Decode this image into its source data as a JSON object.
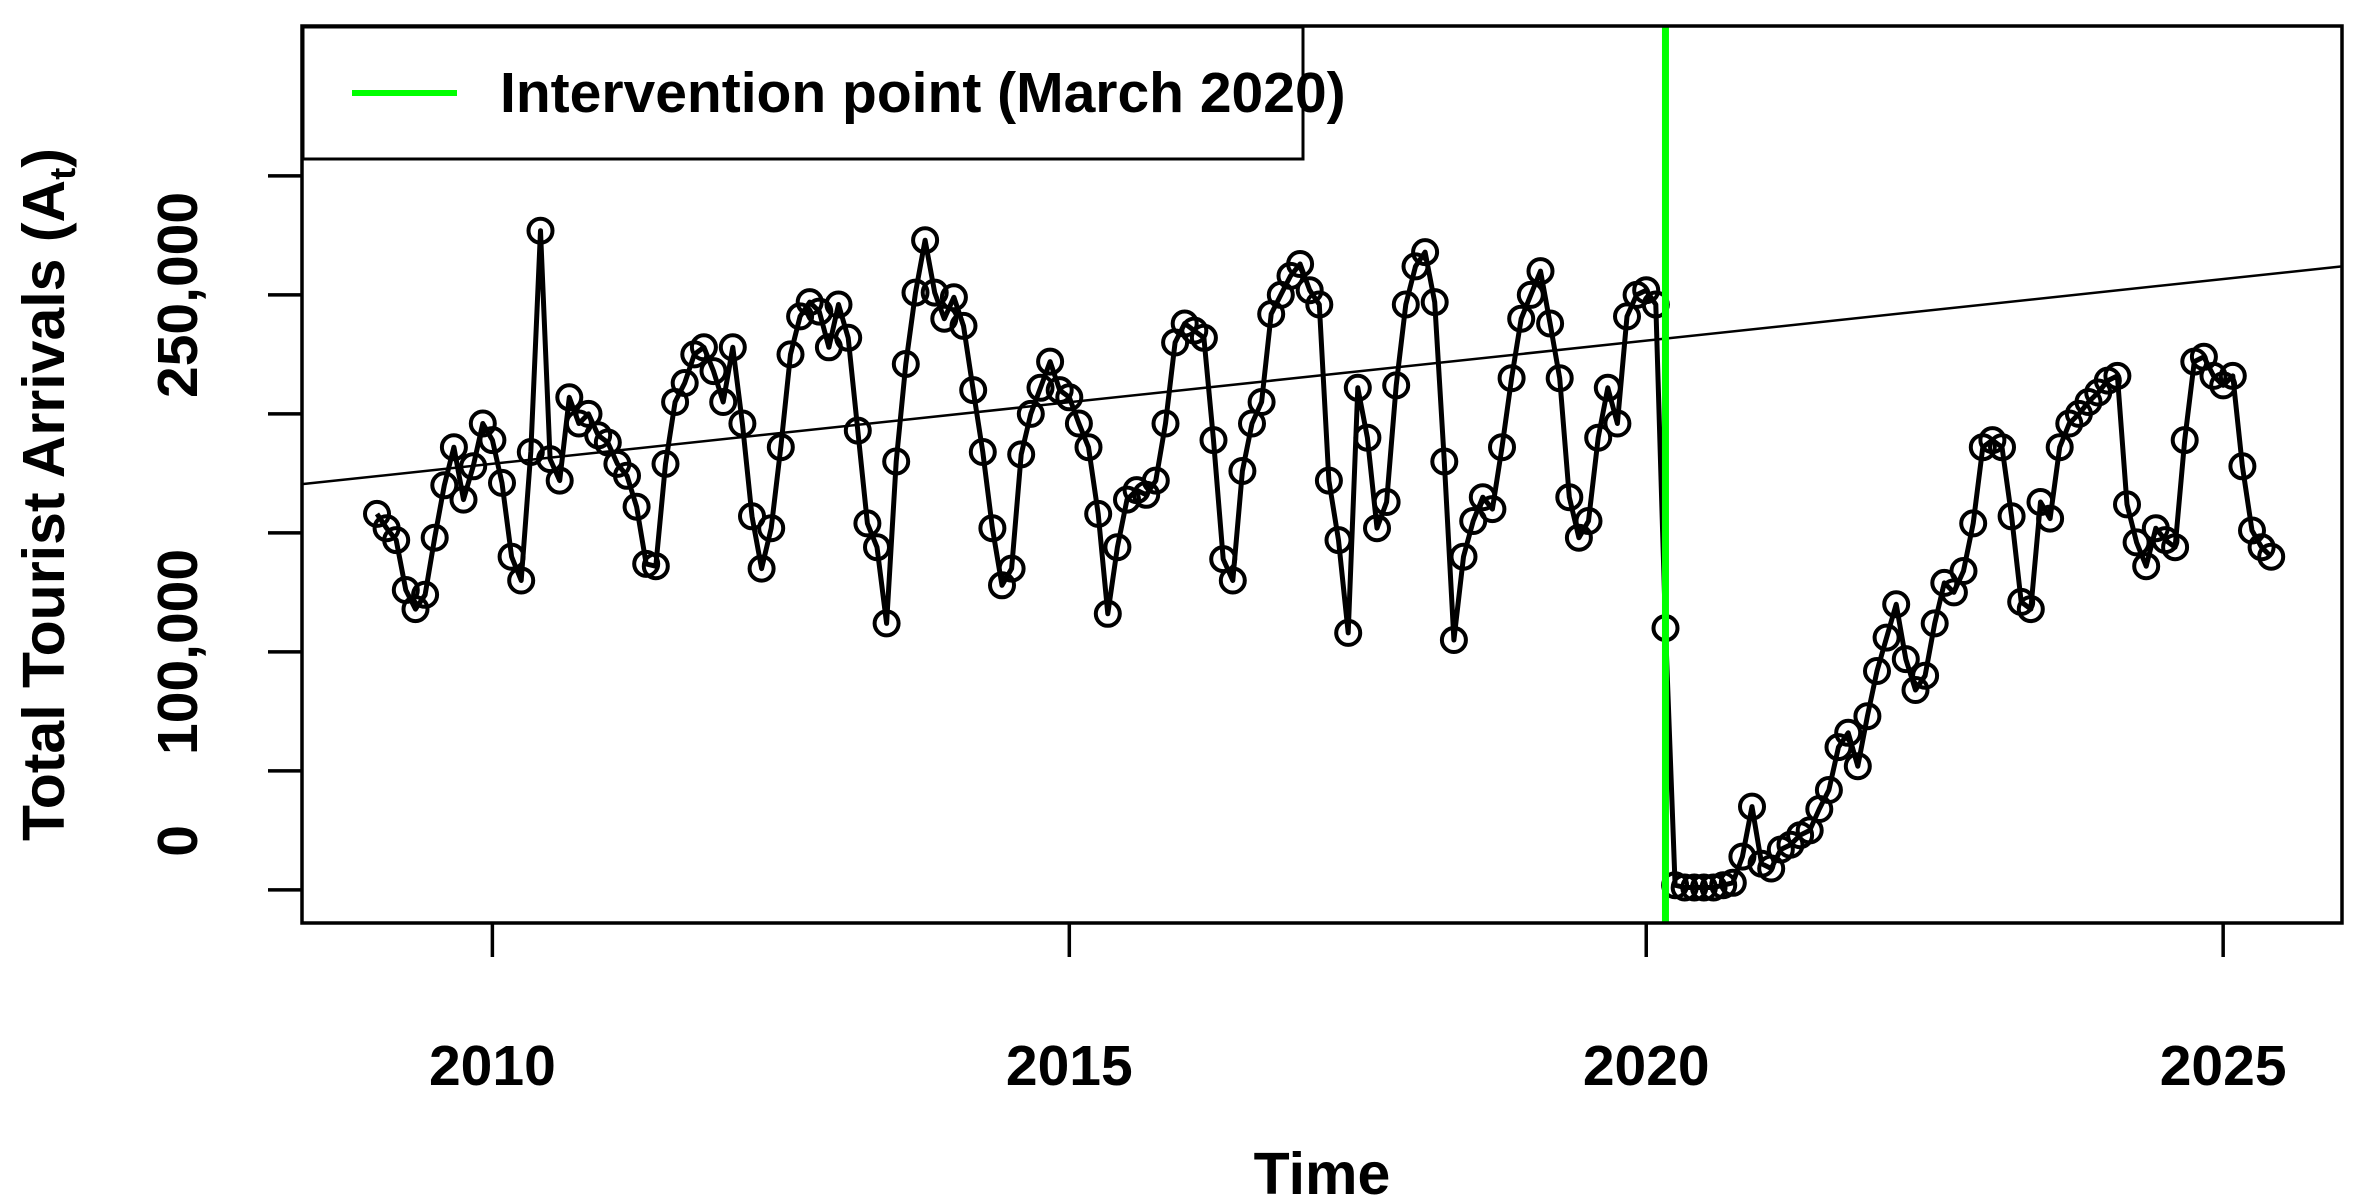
{
  "figure": {
    "background_color": "#ffffff",
    "foreground_color": "#000000",
    "accent_color": "#00ff00"
  },
  "chart_data": {
    "type": "line",
    "title": "",
    "xlabel": "Time",
    "ylabel": "Total Tourist Arrivals  (A_t)",
    "ylabel_parts": {
      "main": "Total Tourist Arrivals  (A",
      "subscript": "t",
      "close": ")"
    },
    "grid": false,
    "legend_position": "topleft",
    "legend": {
      "label": "Intervention point (March 2020)",
      "line_color": "#00ff00"
    },
    "intervention": {
      "x": 2020.1667,
      "color": "#00ff00",
      "label": "Intervention point (March 2020)"
    },
    "trend_line": {
      "x": [
        2008.35,
        2026.03
      ],
      "y": [
        170500,
        262000
      ],
      "color": "#000000"
    },
    "xlim": [
      2008.35,
      2026.03
    ],
    "ylim": [
      -13900,
      363000
    ],
    "x_ticks": [
      {
        "value": 2010,
        "label": "2010"
      },
      {
        "value": 2015,
        "label": "2015"
      },
      {
        "value": 2020,
        "label": "2020"
      },
      {
        "value": 2025,
        "label": "2025"
      }
    ],
    "y_ticks": [
      {
        "value": 0,
        "label": "0"
      },
      {
        "value": 50000,
        "label": ""
      },
      {
        "value": 100000,
        "label": "100,000"
      },
      {
        "value": 150000,
        "label": ""
      },
      {
        "value": 200000,
        "label": ""
      },
      {
        "value": 250000,
        "label": "250,000"
      },
      {
        "value": 300000,
        "label": ""
      }
    ],
    "point_marker": "open-circle",
    "series": [
      {
        "name": "Total Tourist Arrivals",
        "color": "#000000",
        "start_year": 2009,
        "start_month": 1,
        "frequency": "monthly",
        "values_by_year": {
          "2009": [
            158000,
            152000,
            147000,
            126000,
            118000,
            124000,
            148000,
            170000,
            186000,
            164000,
            178000,
            196000
          ],
          "2010": [
            189000,
            171000,
            140000,
            130000,
            184000,
            277000,
            181000,
            172000,
            207000,
            196000,
            200000,
            191000
          ],
          "2011": [
            188000,
            179000,
            174000,
            161000,
            137000,
            136000,
            179000,
            205000,
            213000,
            225000,
            228000,
            218000
          ],
          "2012": [
            205000,
            228000,
            196000,
            157000,
            135000,
            152000,
            186000,
            225000,
            241000,
            247000,
            243000,
            228000
          ],
          "2013": [
            246000,
            232000,
            193000,
            154000,
            144000,
            112000,
            180000,
            221000,
            251000,
            273000,
            251000,
            240000
          ],
          "2014": [
            249000,
            237000,
            210000,
            184000,
            152000,
            128000,
            135000,
            183000,
            200000,
            211000,
            222000,
            210000
          ],
          "2015": [
            207000,
            196000,
            186000,
            158000,
            116000,
            144000,
            164000,
            168000,
            166000,
            172000,
            196000,
            230000
          ],
          "2016": [
            238000,
            235000,
            232000,
            189000,
            139000,
            130000,
            176000,
            196000,
            205000,
            242000,
            250000,
            258000
          ],
          "2017": [
            263000,
            252000,
            246000,
            172000,
            147000,
            108000,
            211000,
            190000,
            152000,
            163000,
            212000,
            246000
          ],
          "2018": [
            262000,
            268000,
            247000,
            180000,
            105000,
            140000,
            155000,
            165000,
            160000,
            186000,
            215000,
            240000
          ],
          "2019": [
            250000,
            260000,
            238000,
            215000,
            165000,
            148000,
            155000,
            190000,
            211000,
            196000,
            241000,
            250000
          ],
          "2020": [
            252000,
            246000,
            110000,
            2000,
            1000,
            1000,
            1000,
            1000,
            2000,
            3000,
            14000,
            35000
          ],
          "2021": [
            11000,
            9000,
            17000,
            19000,
            23000,
            25000,
            34000,
            42000,
            60000,
            66000,
            52000,
            73000
          ],
          "2022": [
            92000,
            106000,
            120000,
            97000,
            84000,
            90000,
            112000,
            129000,
            125000,
            134000,
            154000,
            186000
          ],
          "2023": [
            189000,
            186000,
            157000,
            121000,
            118000,
            163000,
            156000,
            186000,
            196000,
            200000,
            205000,
            209000
          ],
          "2024": [
            214000,
            216000,
            162000,
            146000,
            136000,
            152000,
            147000,
            144000,
            189000,
            222000,
            224000,
            216000
          ],
          "2025": [
            212000,
            216000,
            178000,
            151000,
            144000,
            140000
          ]
        }
      }
    ]
  }
}
